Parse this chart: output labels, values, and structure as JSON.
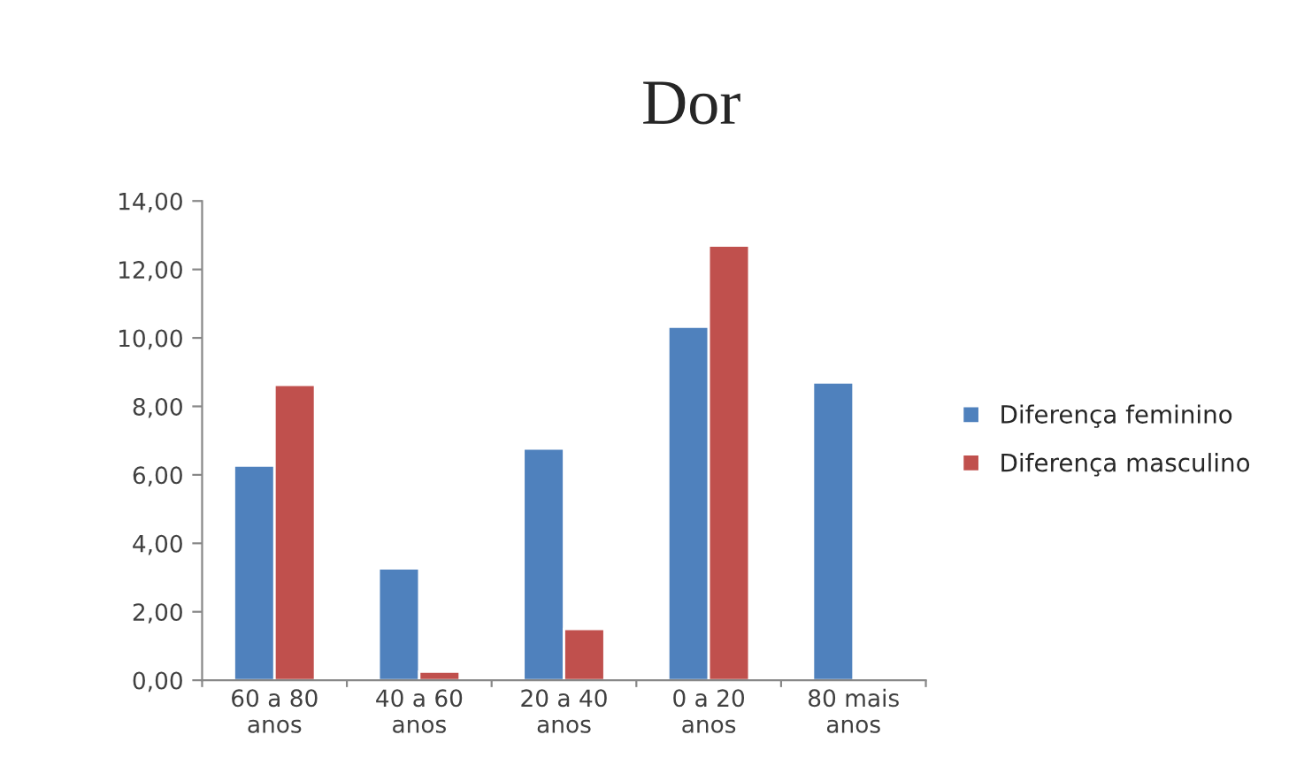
{
  "chart_data": {
    "type": "bar",
    "title": "Dor",
    "categories": [
      "60 a 80 anos",
      "40 a 60 anos",
      "20 a 40 anos",
      "0 a 20 anos",
      "80 mais anos"
    ],
    "series": [
      {
        "name": "Diferença feminino",
        "color": "#4f81bd",
        "values": [
          6.27,
          3.27,
          6.77,
          10.33,
          8.7
        ]
      },
      {
        "name": "Diferença masculino",
        "color": "#c0504d",
        "values": [
          8.63,
          0.25,
          1.5,
          12.7,
          null
        ]
      }
    ],
    "ylim": [
      0,
      14
    ],
    "yticks": [
      {
        "value": 0,
        "label": "0,00"
      },
      {
        "value": 2,
        "label": "2,00"
      },
      {
        "value": 4,
        "label": "4,00"
      },
      {
        "value": 6,
        "label": "6,00"
      },
      {
        "value": 8,
        "label": "8,00"
      },
      {
        "value": 10,
        "label": "10,00"
      },
      {
        "value": 12,
        "label": "12,00"
      },
      {
        "value": 14,
        "label": "14,00"
      }
    ],
    "grid": false,
    "legend": "right"
  }
}
